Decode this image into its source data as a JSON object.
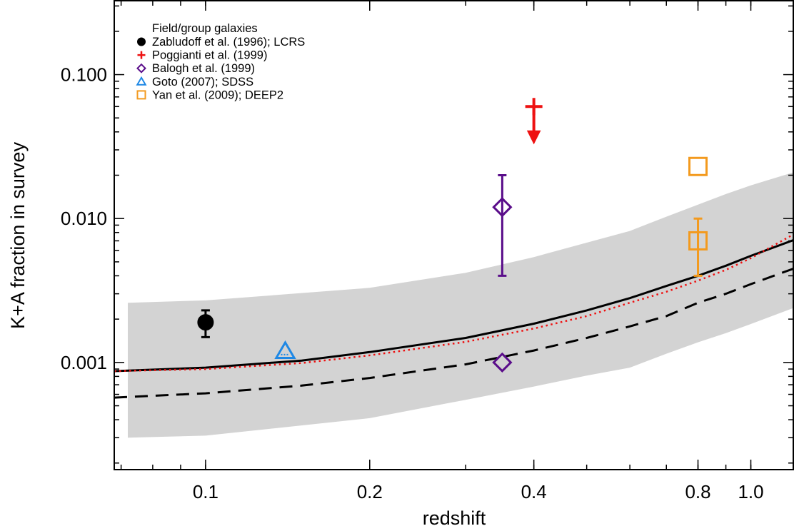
{
  "chart_data": {
    "type": "scatter",
    "xlabel": "redshift",
    "ylabel": "K+A fraction in survey",
    "xscale": "log",
    "yscale": "log",
    "xlim": [
      0.068,
      1.2
    ],
    "ylim": [
      0.00018,
      0.33
    ],
    "xticks": [
      {
        "value": 0.1,
        "label": "0.1"
      },
      {
        "value": 0.2,
        "label": "0.2"
      },
      {
        "value": 0.4,
        "label": "0.4"
      },
      {
        "value": 0.8,
        "label": "0.8"
      },
      {
        "value": 1.0,
        "label": "1.0"
      }
    ],
    "yticks": [
      {
        "value": 0.001,
        "label": "0.001"
      },
      {
        "value": 0.01,
        "label": "0.010"
      },
      {
        "value": 0.1,
        "label": "0.100"
      }
    ],
    "legend": {
      "title": "Field/group galaxies",
      "position": "top-left",
      "entries": [
        {
          "label": "Zabludoff et al. (1996); LCRS",
          "marker": "filled-circle",
          "color": "#000000"
        },
        {
          "label": "Poggianti et al. (1999)",
          "marker": "plus",
          "color": "#ee1111"
        },
        {
          "label": "Balogh et al. (1999)",
          "marker": "diamond",
          "color": "#5a0d8a"
        },
        {
          "label": "Goto (2007); SDSS",
          "marker": "triangle",
          "color": "#1e88e5"
        },
        {
          "label": "Yan et al. (2009); DEEP2",
          "marker": "square",
          "color": "#f39a1e"
        }
      ]
    },
    "points": [
      {
        "series": "Zabludoff et al. (1996); LCRS",
        "x": 0.1,
        "y": 0.0019,
        "ylow": 0.0015,
        "yhigh": 0.0023
      },
      {
        "series": "Poggianti et al. (1999)",
        "x": 0.4,
        "y": 0.06,
        "upper_limit": true
      },
      {
        "series": "Balogh et al. (1999)",
        "x": 0.35,
        "y": 0.012,
        "ylow": 0.004,
        "yhigh": 0.02
      },
      {
        "series": "Balogh et al. (1999)",
        "x": 0.35,
        "y": 0.001
      },
      {
        "series": "Goto (2007); SDSS",
        "x": 0.14,
        "y": 0.0012
      },
      {
        "series": "Yan et al. (2009); DEEP2",
        "x": 0.8,
        "y": 0.023
      },
      {
        "series": "Yan et al. (2009); DEEP2",
        "x": 0.8,
        "y": 0.007,
        "ylow": 0.004,
        "yhigh": 0.01
      }
    ],
    "model_curves": [
      {
        "style": "solid",
        "color": "#000000",
        "x": [
          0.068,
          0.1,
          0.15,
          0.2,
          0.3,
          0.4,
          0.5,
          0.6,
          0.7,
          0.8,
          0.9,
          1.0,
          1.2
        ],
        "y": [
          0.00087,
          0.00092,
          0.00103,
          0.00118,
          0.00148,
          0.00186,
          0.0023,
          0.0028,
          0.0034,
          0.004,
          0.0047,
          0.0055,
          0.0071
        ]
      },
      {
        "style": "dashed",
        "color": "#000000",
        "x": [
          0.068,
          0.1,
          0.15,
          0.2,
          0.3,
          0.4,
          0.5,
          0.6,
          0.7,
          0.8,
          0.9,
          1.0,
          1.2
        ],
        "y": [
          0.00057,
          0.00061,
          0.00069,
          0.00078,
          0.00097,
          0.00121,
          0.00148,
          0.00178,
          0.0021,
          0.0026,
          0.003,
          0.0035,
          0.0045
        ]
      },
      {
        "style": "dotted",
        "color": "#ee1111",
        "x": [
          0.068,
          0.1,
          0.15,
          0.2,
          0.3,
          0.4,
          0.5,
          0.6,
          0.7,
          0.8,
          0.9,
          1.0,
          1.2
        ],
        "y": [
          0.00087,
          0.0009,
          0.00099,
          0.00112,
          0.00139,
          0.00172,
          0.0021,
          0.0026,
          0.0031,
          0.0037,
          0.0044,
          0.0053,
          0.0078
        ]
      }
    ],
    "band": {
      "color": "#d3d3d3",
      "x": [
        0.072,
        0.1,
        0.2,
        0.3,
        0.4,
        0.5,
        0.6,
        0.7,
        0.8,
        0.9,
        1.0,
        1.2
      ],
      "upper": [
        0.0026,
        0.0027,
        0.0033,
        0.0042,
        0.0054,
        0.0068,
        0.0082,
        0.0103,
        0.0125,
        0.0148,
        0.017,
        0.021
      ],
      "lower": [
        0.0003,
        0.00031,
        0.00041,
        0.00055,
        0.00068,
        0.00081,
        0.00092,
        0.00115,
        0.00138,
        0.0016,
        0.00185,
        0.0024
      ]
    }
  }
}
